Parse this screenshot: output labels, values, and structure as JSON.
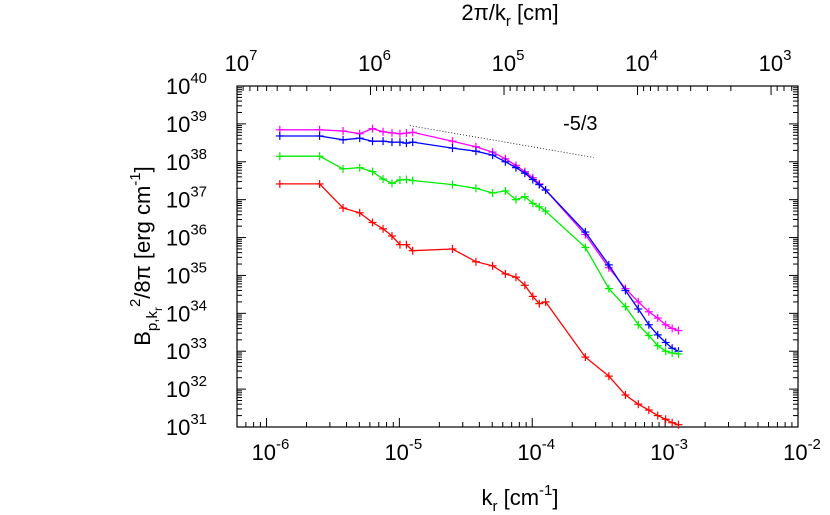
{
  "chart_data": {
    "type": "line",
    "xlabel_bottom": {
      "base": "k",
      "sub": "r",
      "unit": " [cm",
      "unit_sup": "-1",
      "close": "]"
    },
    "xlabel_top": {
      "pre": "2π/k",
      "sub": "r",
      "post": " [cm]"
    },
    "ylabel": {
      "pre": "B",
      "sub": "p,k",
      "subsub": "r",
      "sup": "2",
      "post": "/8π [erg cm",
      "post_sup": "-1",
      "close": "]"
    },
    "x_scale": "log",
    "y_scale": "log",
    "xlim": [
      6e-07,
      0.01
    ],
    "ylim": [
      1e+31,
      1e+40
    ],
    "top_axis_range_cm": [
      10000000.0,
      628.3
    ],
    "bottom_ticks": [
      {
        "value": 1e-06,
        "base": "10",
        "exp": "-6"
      },
      {
        "value": 1e-05,
        "base": "10",
        "exp": "-5"
      },
      {
        "value": 0.0001,
        "base": "10",
        "exp": "-4"
      },
      {
        "value": 0.001,
        "base": "10",
        "exp": "-3"
      },
      {
        "value": 0.01,
        "base": "10",
        "exp": "-2"
      }
    ],
    "top_ticks": [
      {
        "value": 10000000.0,
        "base": "10",
        "exp": "7"
      },
      {
        "value": 1000000.0,
        "base": "10",
        "exp": "6"
      },
      {
        "value": 100000.0,
        "base": "10",
        "exp": "5"
      },
      {
        "value": 10000.0,
        "base": "10",
        "exp": "4"
      },
      {
        "value": 1000.0,
        "base": "10",
        "exp": "3"
      }
    ],
    "y_ticks": [
      {
        "value": 1e+31,
        "base": "10",
        "exp": "31"
      },
      {
        "value": 1e+32,
        "base": "10",
        "exp": "32"
      },
      {
        "value": 1e+33,
        "base": "10",
        "exp": "33"
      },
      {
        "value": 1e+34,
        "base": "10",
        "exp": "34"
      },
      {
        "value": 1e+35,
        "base": "10",
        "exp": "35"
      },
      {
        "value": 1e+36,
        "base": "10",
        "exp": "36"
      },
      {
        "value": 1e+37,
        "base": "10",
        "exp": "37"
      },
      {
        "value": 1e+38,
        "base": "10",
        "exp": "38"
      },
      {
        "value": 1e+39,
        "base": "10",
        "exp": "39"
      },
      {
        "value": 1e+40,
        "base": "10",
        "exp": "40"
      }
    ],
    "grid": false,
    "legend": "none",
    "annotation": {
      "text": "-5/3",
      "line": {
        "x": [
          1.2e-05,
          0.00029
        ],
        "y": [
          9e+38,
          1.3e+38
        ],
        "style": "dotted"
      },
      "label_at": {
        "x": 0.00023,
        "y": 7e+38
      }
    },
    "series": [
      {
        "color": "#ff00ff",
        "x": [
          1.26e-06,
          2.51e-06,
          3.77e-06,
          5.03e-06,
          6.28e-06,
          7.54e-06,
          8.8e-06,
          1.01e-05,
          1.13e-05,
          1.26e-05,
          2.51e-05,
          3.77e-05,
          5.03e-05,
          6.28e-05,
          7.54e-05,
          8.8e-05,
          0.000101,
          0.000113,
          0.000126,
          0.000251,
          0.000377,
          0.000503,
          0.000628,
          0.000754,
          0.00088,
          0.00101,
          0.00113,
          0.00126
        ],
        "y": [
          7e+38,
          7e+38,
          6.5e+38,
          5.5e+38,
          7.5e+38,
          6.2e+38,
          5.8e+38,
          5.5e+38,
          5.7e+38,
          6e+38,
          3.5e+38,
          2.5e+38,
          1.8e+38,
          1.2e+38,
          8e+37,
          5.5e+37,
          3.8e+37,
          2.6e+37,
          1.8e+37,
          1.2e+36,
          1.6e+35,
          4.5e+34,
          2e+34,
          1.1e+34,
          7.5e+33,
          5e+33,
          4e+33,
          3.5e+33
        ]
      },
      {
        "color": "#0000ff",
        "x": [
          1.26e-06,
          2.51e-06,
          3.77e-06,
          5.03e-06,
          6.28e-06,
          7.54e-06,
          8.8e-06,
          1.01e-05,
          1.13e-05,
          1.26e-05,
          2.51e-05,
          3.77e-05,
          5.03e-05,
          6.28e-05,
          7.54e-05,
          8.8e-05,
          0.000101,
          0.000113,
          0.000126,
          0.000251,
          0.000377,
          0.000503,
          0.000628,
          0.000754,
          0.00088,
          0.00101,
          0.00113,
          0.00126
        ],
        "y": [
          4.8e+38,
          4.8e+38,
          3.8e+38,
          4.2e+38,
          3.5e+38,
          3.5e+38,
          3.3e+38,
          3.3e+38,
          3.1e+38,
          3.3e+38,
          2.3e+38,
          1.9e+38,
          1.5e+38,
          1e+38,
          7e+37,
          5e+37,
          3.4e+37,
          2.5e+37,
          1.8e+37,
          1.4e+36,
          1.9e+35,
          4e+34,
          1.3e+34,
          5e+33,
          2.7e+33,
          1.7e+33,
          1.2e+33,
          1e+33
        ]
      },
      {
        "color": "#00ee00",
        "x": [
          1.26e-06,
          2.51e-06,
          3.77e-06,
          5.03e-06,
          6.28e-06,
          7.54e-06,
          8.8e-06,
          1.01e-05,
          1.13e-05,
          1.26e-05,
          2.51e-05,
          3.77e-05,
          5.03e-05,
          6.28e-05,
          7.54e-05,
          8.8e-05,
          0.000101,
          0.000113,
          0.000126,
          0.000251,
          0.000377,
          0.000503,
          0.000628,
          0.000754,
          0.00088,
          0.00101,
          0.00113,
          0.00126
        ],
        "y": [
          1.4e+38,
          1.4e+38,
          6.5e+37,
          7e+37,
          5.5e+37,
          3.5e+37,
          2.7e+37,
          3.3e+37,
          3.4e+37,
          3.2e+37,
          2.5e+37,
          2e+37,
          1.5e+37,
          1.7e+37,
          1e+37,
          1.2e+37,
          8e+36,
          6.5e+36,
          5e+36,
          5.5e+35,
          4.5e+34,
          1.5e+34,
          5e+33,
          2.6e+33,
          1.4e+33,
          1e+33,
          9e+32,
          8.5e+32
        ]
      },
      {
        "color": "#ff0000",
        "x": [
          1.26e-06,
          2.51e-06,
          3.77e-06,
          5.03e-06,
          6.28e-06,
          7.54e-06,
          8.8e-06,
          1.01e-05,
          1.13e-05,
          1.26e-05,
          2.51e-05,
          3.77e-05,
          5.03e-05,
          6.28e-05,
          7.54e-05,
          8.8e-05,
          0.000101,
          0.000113,
          0.000126,
          0.000251,
          0.000377,
          0.000503,
          0.000628,
          0.000754,
          0.00088,
          0.00101,
          0.00113,
          0.00126
        ],
        "y": [
          2.6e+37,
          2.6e+37,
          6e+36,
          4.5e+36,
          2.5e+36,
          1.7e+36,
          1.1e+36,
          6.5e+35,
          6.5e+35,
          4.5e+35,
          5e+35,
          2.3e+35,
          1.8e+35,
          1.1e+35,
          9e+34,
          5.5e+34,
          2.8e+34,
          1.8e+34,
          2e+34,
          7e+32,
          2.2e+32,
          7e+31,
          4e+31,
          2.8e+31,
          2e+31,
          1.6e+31,
          1.3e+31,
          1.15e+31
        ]
      }
    ]
  }
}
